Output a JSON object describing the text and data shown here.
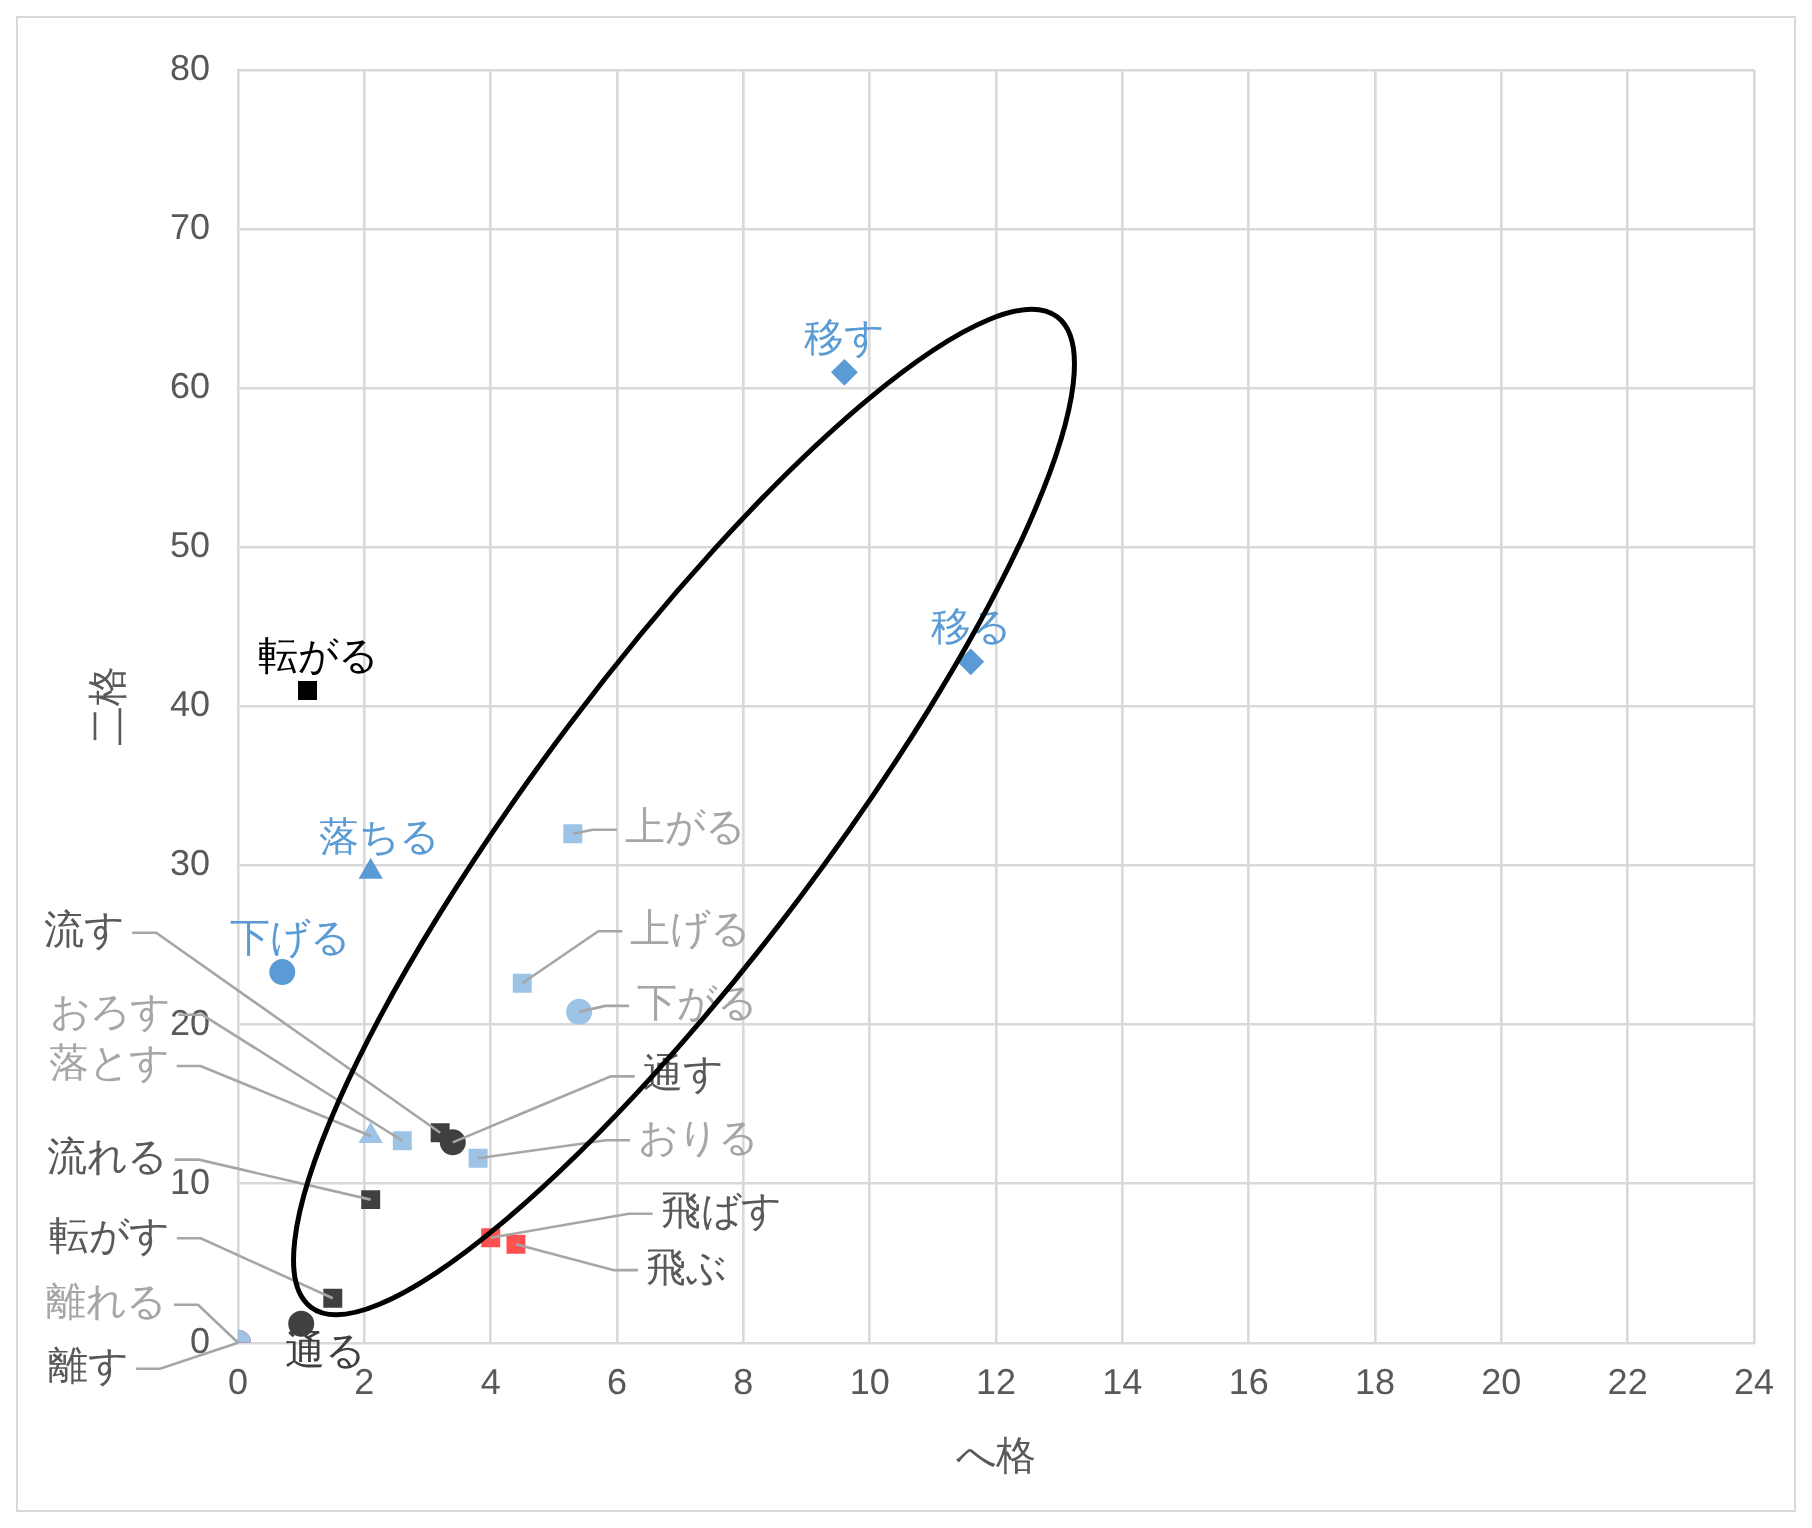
{
  "chart_data": {
    "type": "scatter",
    "xlabel": "へ格",
    "ylabel": "二格",
    "xlim": [
      0,
      24
    ],
    "xticks": [
      0,
      2,
      4,
      6,
      8,
      10,
      12,
      14,
      16,
      18,
      20,
      22,
      24
    ],
    "ylim": [
      0,
      80
    ],
    "yticks": [
      0,
      10,
      20,
      30,
      40,
      50,
      60,
      70,
      80
    ],
    "grid": true,
    "legend": false,
    "series": [
      {
        "name": "移す",
        "color": "#5b9bd5",
        "marker": "diamond",
        "x": [
          9.6
        ],
        "values": [
          61
        ]
      },
      {
        "name": "移る",
        "color": "#5b9bd5",
        "marker": "diamond",
        "x": [
          11.6
        ],
        "values": [
          42.8
        ]
      },
      {
        "name": "転がる",
        "color": "#000000",
        "marker": "square",
        "x": [
          1.1
        ],
        "values": [
          41
        ]
      },
      {
        "name": "落ちる",
        "color": "#5b9bd5",
        "marker": "triangle",
        "x": [
          2.1
        ],
        "values": [
          29.6
        ]
      },
      {
        "name": "上がる",
        "color": "#9dc3e6",
        "marker": "square",
        "x": [
          5.3
        ],
        "values": [
          32
        ]
      },
      {
        "name": "下げる",
        "color": "#5b9bd5",
        "marker": "circle",
        "x": [
          0.7
        ],
        "values": [
          23.3
        ]
      },
      {
        "name": "上げる",
        "color": "#9dc3e6",
        "marker": "square",
        "x": [
          4.5
        ],
        "values": [
          22.6
        ]
      },
      {
        "name": "下がる",
        "color": "#9dc3e6",
        "marker": "circle",
        "x": [
          5.4
        ],
        "values": [
          20.8
        ]
      },
      {
        "name": "落とす",
        "color": "#9dc3e6",
        "marker": "triangle",
        "x": [
          2.1
        ],
        "values": [
          13
        ]
      },
      {
        "name": "おろす",
        "color": "#9dc3e6",
        "marker": "square",
        "x": [
          2.6
        ],
        "values": [
          12.7
        ]
      },
      {
        "name": "流す",
        "color": "#404040",
        "marker": "square",
        "x": [
          3.2
        ],
        "values": [
          13.2
        ]
      },
      {
        "name": "通す",
        "color": "#404040",
        "marker": "circle",
        "x": [
          3.4
        ],
        "values": [
          12.6
        ]
      },
      {
        "name": "おりる",
        "color": "#9dc3e6",
        "marker": "square",
        "x": [
          3.8
        ],
        "values": [
          11.6
        ]
      },
      {
        "name": "流れる",
        "color": "#404040",
        "marker": "square",
        "x": [
          2.1
        ],
        "values": [
          9
        ]
      },
      {
        "name": "飛ばす",
        "color": "#ff5050",
        "marker": "square",
        "x": [
          4
        ],
        "values": [
          6.6
        ]
      },
      {
        "name": "飛ぶ",
        "color": "#ff5050",
        "marker": "square",
        "x": [
          4.4
        ],
        "values": [
          6.2
        ]
      },
      {
        "name": "転がす",
        "color": "#404040",
        "marker": "square",
        "x": [
          1.5
        ],
        "values": [
          2.8
        ]
      },
      {
        "name": "通る",
        "color": "#404040",
        "marker": "circle",
        "x": [
          1
        ],
        "values": [
          1.2
        ]
      },
      {
        "name": "離れる",
        "color": "#9dc3e6",
        "marker": "circle",
        "x": [
          0
        ],
        "values": [
          0
        ]
      },
      {
        "name": "離す",
        "color": "#ff0000",
        "marker": "circle",
        "x": [
          0
        ],
        "values": [
          0
        ]
      }
    ]
  }
}
